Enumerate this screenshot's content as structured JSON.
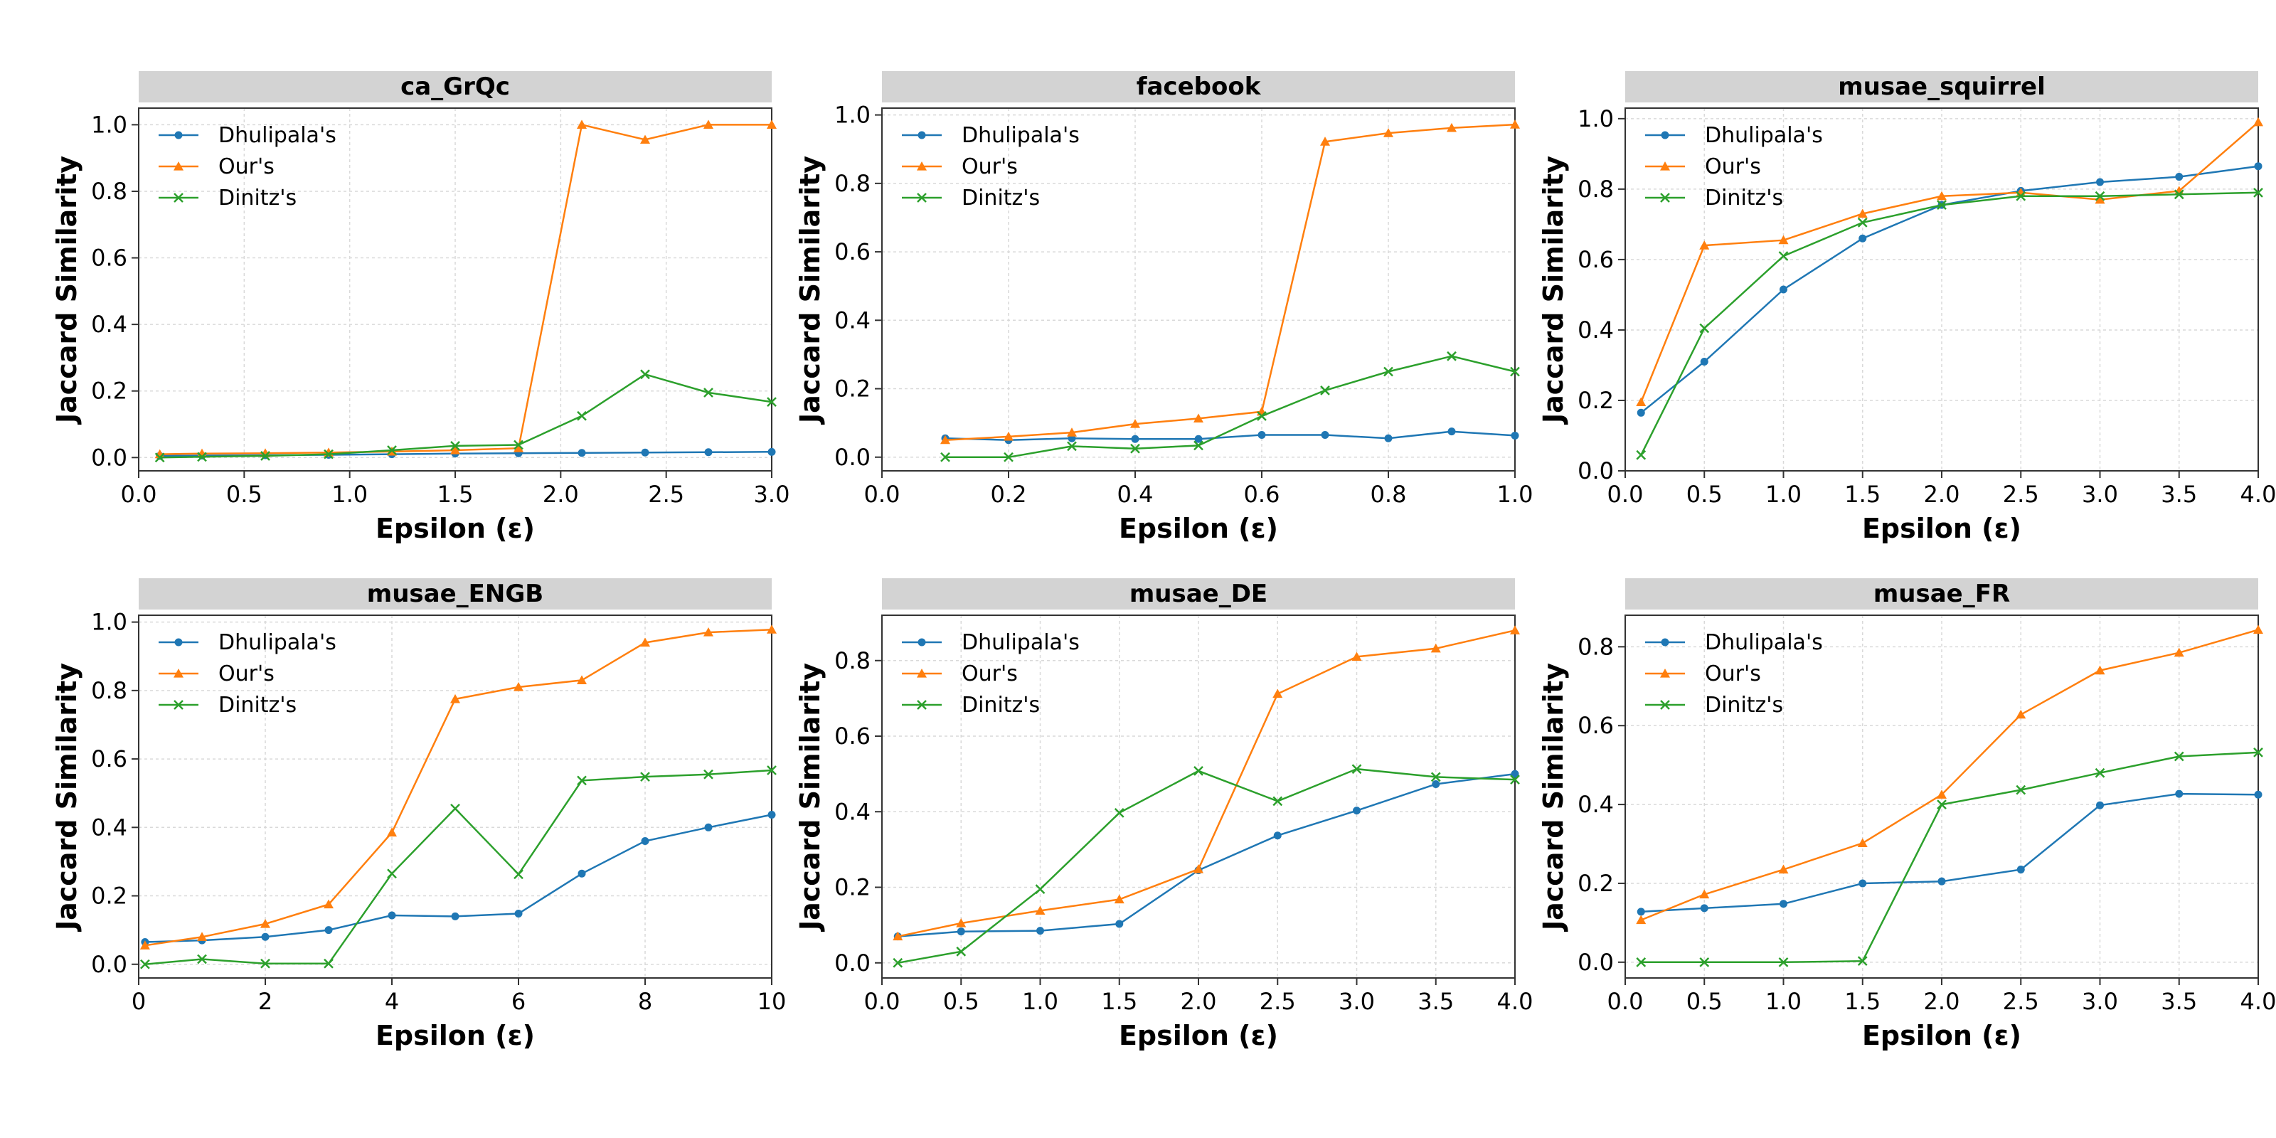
{
  "colors": {
    "Dhulipala's": "#1f77b4",
    "Our's": "#ff7f0e",
    "Dinitz's": "#2ca02c"
  },
  "chart_data": [
    {
      "type": "line",
      "title": "ca_GrQc",
      "xlabel": "Epsilon (ε)",
      "ylabel": "Jaccard Similarity",
      "xlim": [
        0,
        3.0
      ],
      "ylim": [
        -0.04,
        1.05
      ],
      "xticks": [
        0.0,
        0.5,
        1.0,
        1.5,
        2.0,
        2.5,
        3.0
      ],
      "xtick_labels": [
        "0.0",
        "0.5",
        "1.0",
        "1.5",
        "2.0",
        "2.5",
        "3.0"
      ],
      "yticks": [
        0.0,
        0.2,
        0.4,
        0.6,
        0.8,
        1.0
      ],
      "ytick_labels": [
        "0.0",
        "0.2",
        "0.4",
        "0.6",
        "0.8",
        "1.0"
      ],
      "grid": true,
      "legend": "top-left",
      "x": [
        0.1,
        0.3,
        0.6,
        0.9,
        1.2,
        1.5,
        1.8,
        2.1,
        2.4,
        2.7,
        3.0
      ],
      "series": [
        {
          "name": "Dhulipala's",
          "marker": "circle",
          "values": [
            0.005,
            0.006,
            0.007,
            0.008,
            0.01,
            0.012,
            0.013,
            0.014,
            0.015,
            0.016,
            0.017
          ]
        },
        {
          "name": "Our's",
          "marker": "triangle",
          "values": [
            0.01,
            0.012,
            0.013,
            0.015,
            0.018,
            0.022,
            0.028,
            1.0,
            0.955,
            1.0,
            1.0
          ]
        },
        {
          "name": "Dinitz's",
          "marker": "x",
          "values": [
            0.0,
            0.002,
            0.005,
            0.01,
            0.022,
            0.035,
            0.038,
            0.125,
            0.25,
            0.195,
            0.167
          ]
        }
      ]
    },
    {
      "type": "line",
      "title": "facebook",
      "xlabel": "Epsilon (ε)",
      "ylabel": "Jaccard Similarity",
      "xlim": [
        0,
        1.0
      ],
      "ylim": [
        -0.04,
        1.02
      ],
      "xticks": [
        0.0,
        0.2,
        0.4,
        0.6,
        0.8,
        1.0
      ],
      "xtick_labels": [
        "0.0",
        "0.2",
        "0.4",
        "0.6",
        "0.8",
        "1.0"
      ],
      "yticks": [
        0.0,
        0.2,
        0.4,
        0.6,
        0.8,
        1.0
      ],
      "ytick_labels": [
        "0.0",
        "0.2",
        "0.4",
        "0.6",
        "0.8",
        "1.0"
      ],
      "grid": true,
      "legend": "top-left",
      "x": [
        0.1,
        0.2,
        0.3,
        0.4,
        0.5,
        0.6,
        0.7,
        0.8,
        0.9,
        1.0
      ],
      "series": [
        {
          "name": "Dhulipala's",
          "marker": "circle",
          "values": [
            0.055,
            0.05,
            0.055,
            0.053,
            0.053,
            0.065,
            0.065,
            0.055,
            0.075,
            0.063
          ]
        },
        {
          "name": "Our's",
          "marker": "triangle",
          "values": [
            0.05,
            0.06,
            0.072,
            0.097,
            0.113,
            0.133,
            0.922,
            0.947,
            0.962,
            0.972
          ]
        },
        {
          "name": "Dinitz's",
          "marker": "x",
          "values": [
            0.0,
            0.0,
            0.032,
            0.025,
            0.034,
            0.12,
            0.195,
            0.25,
            0.295,
            0.25
          ]
        }
      ]
    },
    {
      "type": "line",
      "title": "musae_squirrel",
      "xlabel": "Epsilon (ε)",
      "ylabel": "Jaccard Similarity",
      "xlim": [
        0,
        4.0
      ],
      "ylim": [
        0,
        1.03
      ],
      "xticks": [
        0.0,
        0.5,
        1.0,
        1.5,
        2.0,
        2.5,
        3.0,
        3.5,
        4.0
      ],
      "xtick_labels": [
        "0.0",
        "0.5",
        "1.0",
        "1.5",
        "2.0",
        "2.5",
        "3.0",
        "3.5",
        "4.0"
      ],
      "yticks": [
        0.0,
        0.2,
        0.4,
        0.6,
        0.8,
        1.0
      ],
      "ytick_labels": [
        "0.0",
        "0.2",
        "0.4",
        "0.6",
        "0.8",
        "1.0"
      ],
      "grid": true,
      "legend": "top-left",
      "x": [
        0.1,
        0.5,
        1.0,
        1.5,
        2.0,
        2.5,
        3.0,
        3.5,
        4.0
      ],
      "series": [
        {
          "name": "Dhulipala's",
          "marker": "circle",
          "values": [
            0.165,
            0.31,
            0.515,
            0.66,
            0.755,
            0.795,
            0.82,
            0.835,
            0.865
          ]
        },
        {
          "name": "Our's",
          "marker": "triangle",
          "values": [
            0.195,
            0.64,
            0.655,
            0.73,
            0.78,
            0.79,
            0.77,
            0.795,
            0.99
          ]
        },
        {
          "name": "Dinitz's",
          "marker": "x",
          "values": [
            0.045,
            0.405,
            0.61,
            0.705,
            0.755,
            0.78,
            0.78,
            0.785,
            0.79
          ]
        }
      ]
    },
    {
      "type": "line",
      "title": "musae_ENGB",
      "xlabel": "Epsilon (ε)",
      "ylabel": "Jaccard Similarity",
      "xlim": [
        0,
        10
      ],
      "ylim": [
        -0.04,
        1.02
      ],
      "xticks": [
        0,
        2,
        4,
        6,
        8,
        10
      ],
      "xtick_labels": [
        "0",
        "2",
        "4",
        "6",
        "8",
        "10"
      ],
      "yticks": [
        0.0,
        0.2,
        0.4,
        0.6,
        0.8,
        1.0
      ],
      "ytick_labels": [
        "0.0",
        "0.2",
        "0.4",
        "0.6",
        "0.8",
        "1.0"
      ],
      "grid": true,
      "legend": "top-left",
      "x": [
        0.1,
        1,
        2,
        3,
        4,
        5,
        6,
        7,
        8,
        9,
        10
      ],
      "series": [
        {
          "name": "Dhulipala's",
          "marker": "circle",
          "values": [
            0.065,
            0.07,
            0.08,
            0.1,
            0.143,
            0.14,
            0.148,
            0.265,
            0.36,
            0.4,
            0.437
          ]
        },
        {
          "name": "Our's",
          "marker": "triangle",
          "values": [
            0.055,
            0.08,
            0.118,
            0.175,
            0.385,
            0.775,
            0.81,
            0.83,
            0.94,
            0.97,
            0.978
          ]
        },
        {
          "name": "Dinitz's",
          "marker": "x",
          "values": [
            0.0,
            0.015,
            0.002,
            0.002,
            0.265,
            0.455,
            0.263,
            0.537,
            0.548,
            0.555,
            0.567
          ]
        }
      ]
    },
    {
      "type": "line",
      "title": "musae_DE",
      "xlabel": "Epsilon (ε)",
      "ylabel": "Jaccard Similarity",
      "xlim": [
        0,
        4.0
      ],
      "ylim": [
        -0.04,
        0.92
      ],
      "xticks": [
        0.0,
        0.5,
        1.0,
        1.5,
        2.0,
        2.5,
        3.0,
        3.5,
        4.0
      ],
      "xtick_labels": [
        "0.0",
        "0.5",
        "1.0",
        "1.5",
        "2.0",
        "2.5",
        "3.0",
        "3.5",
        "4.0"
      ],
      "yticks": [
        0.0,
        0.2,
        0.4,
        0.6,
        0.8
      ],
      "ytick_labels": [
        "0.0",
        "0.2",
        "0.4",
        "0.6",
        "0.8"
      ],
      "grid": true,
      "legend": "top-left",
      "x": [
        0.1,
        0.5,
        1.0,
        1.5,
        2.0,
        2.5,
        3.0,
        3.5,
        4.0
      ],
      "series": [
        {
          "name": "Dhulipala's",
          "marker": "circle",
          "values": [
            0.07,
            0.083,
            0.085,
            0.103,
            0.245,
            0.337,
            0.403,
            0.473,
            0.5
          ]
        },
        {
          "name": "Our's",
          "marker": "triangle",
          "values": [
            0.07,
            0.105,
            0.138,
            0.168,
            0.248,
            0.712,
            0.81,
            0.832,
            0.88
          ]
        },
        {
          "name": "Dinitz's",
          "marker": "x",
          "values": [
            0.0,
            0.03,
            0.195,
            0.397,
            0.508,
            0.428,
            0.513,
            0.492,
            0.485
          ]
        }
      ]
    },
    {
      "type": "line",
      "title": "musae_FR",
      "xlabel": "Epsilon (ε)",
      "ylabel": "Jaccard Similarity",
      "xlim": [
        0,
        4.0
      ],
      "ylim": [
        -0.04,
        0.88
      ],
      "xticks": [
        0.0,
        0.5,
        1.0,
        1.5,
        2.0,
        2.5,
        3.0,
        3.5,
        4.0
      ],
      "xtick_labels": [
        "0.0",
        "0.5",
        "1.0",
        "1.5",
        "2.0",
        "2.5",
        "3.0",
        "3.5",
        "4.0"
      ],
      "yticks": [
        0.0,
        0.2,
        0.4,
        0.6,
        0.8
      ],
      "ytick_labels": [
        "0.0",
        "0.2",
        "0.4",
        "0.6",
        "0.8"
      ],
      "grid": true,
      "legend": "top-left",
      "x": [
        0.1,
        0.5,
        1.0,
        1.5,
        2.0,
        2.5,
        3.0,
        3.5,
        4.0
      ],
      "series": [
        {
          "name": "Dhulipala's",
          "marker": "circle",
          "values": [
            0.128,
            0.137,
            0.148,
            0.2,
            0.205,
            0.235,
            0.398,
            0.427,
            0.425
          ]
        },
        {
          "name": "Our's",
          "marker": "triangle",
          "values": [
            0.107,
            0.172,
            0.235,
            0.302,
            0.425,
            0.628,
            0.74,
            0.785,
            0.843
          ]
        },
        {
          "name": "Dinitz's",
          "marker": "x",
          "values": [
            0.0,
            0.0,
            0.0,
            0.003,
            0.4,
            0.437,
            0.48,
            0.522,
            0.532
          ]
        }
      ]
    }
  ]
}
